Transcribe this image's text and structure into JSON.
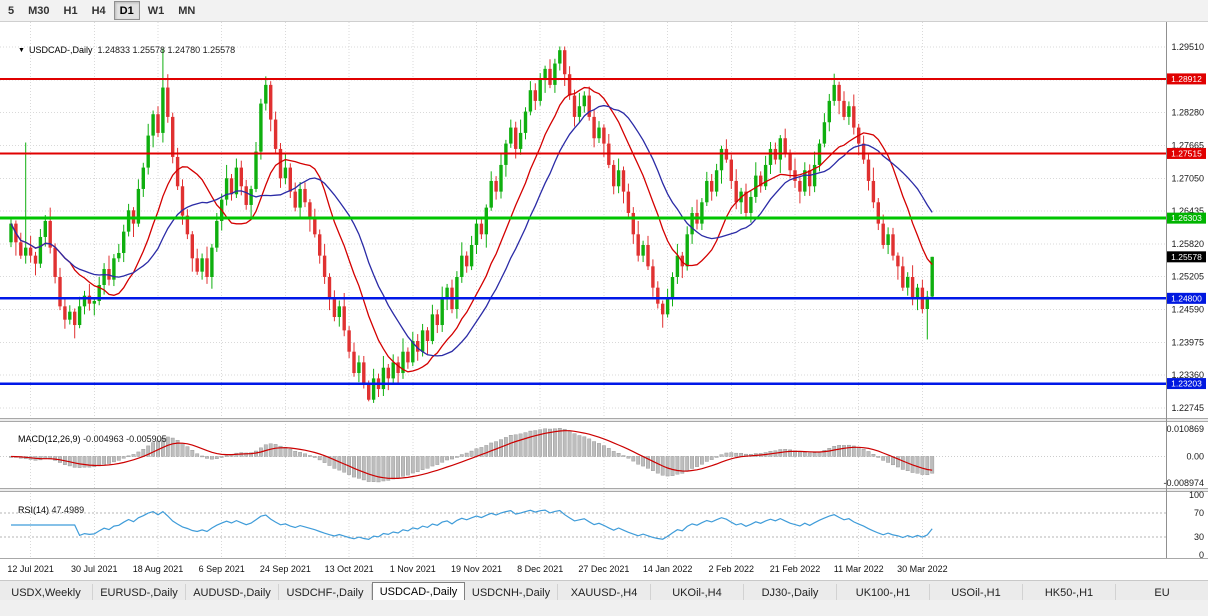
{
  "toolbar": {
    "timeframes": [
      {
        "label": "5",
        "active": false
      },
      {
        "label": "M30",
        "active": false
      },
      {
        "label": "H1",
        "active": false
      },
      {
        "label": "H4",
        "active": false
      },
      {
        "label": "D1",
        "active": true
      },
      {
        "label": "W1",
        "active": false
      },
      {
        "label": "MN",
        "active": false
      }
    ]
  },
  "header": {
    "collapse_icon": "▼",
    "symbol": "USDCAD-,Daily",
    "ohlc": "1.24833 1.25578 1.24780 1.25578"
  },
  "chart_data": {
    "type": "candlestick",
    "symbol": "USDCAD",
    "timeframe": "Daily",
    "up_color": "#0faf0f",
    "down_color": "#e03131",
    "grid_color": "#d9d9d9",
    "x_ticks": [
      "12 Jul 2021",
      "30 Jul 2021",
      "18 Aug 2021",
      "6 Sep 2021",
      "24 Sep 2021",
      "13 Oct 2021",
      "1 Nov 2021",
      "19 Nov 2021",
      "8 Dec 2021",
      "27 Dec 2021",
      "14 Jan 2022",
      "2 Feb 2022",
      "21 Feb 2022",
      "11 Mar 2022",
      "30 Mar 2022"
    ],
    "first_tick_index": 4,
    "tick_step": 13,
    "price_axis": {
      "min": 1.22745,
      "max": 1.2951,
      "grid_prices": [
        1.2951,
        1.28895,
        1.2828,
        1.27665,
        1.2705,
        1.26435,
        1.2582,
        1.25205,
        1.2459,
        1.23975,
        1.2336,
        1.22745
      ],
      "scale_labels": [
        {
          "t": "1.29510",
          "p": 1.2951
        },
        {
          "t": "1.28280",
          "p": 1.2828
        },
        {
          "t": "1.27665",
          "p": 1.27665
        },
        {
          "t": "1.27050",
          "p": 1.2705
        },
        {
          "t": "1.26435",
          "p": 1.26435
        },
        {
          "t": "1.25820",
          "p": 1.2582
        },
        {
          "t": "1.25205",
          "p": 1.25205
        },
        {
          "t": "1.24590",
          "p": 1.2459
        },
        {
          "t": "1.23975",
          "p": 1.23975
        },
        {
          "t": "1.23360",
          "p": 1.2336
        },
        {
          "t": "1.22745",
          "p": 1.22745
        }
      ],
      "badges": [
        {
          "t": "1.28912",
          "p": 1.28912,
          "bg": "#e00000"
        },
        {
          "t": "1.27515",
          "p": 1.27515,
          "bg": "#e00000"
        },
        {
          "t": "1.26303",
          "p": 1.26303,
          "bg": "#00b400"
        },
        {
          "t": "1.25578",
          "p": 1.25578,
          "bg": "#000000"
        },
        {
          "t": "1.24800",
          "p": 1.248,
          "bg": "#0018e0"
        },
        {
          "t": "1.23203",
          "p": 1.23203,
          "bg": "#0018e0"
        }
      ]
    },
    "hlines": [
      {
        "p": 1.28912,
        "color": "#e00000",
        "w": 2
      },
      {
        "p": 1.27515,
        "color": "#e00000",
        "w": 2
      },
      {
        "p": 1.26303,
        "color": "#00c400",
        "w": 3
      },
      {
        "p": 1.248,
        "color": "#0018e8",
        "w": 2.5
      },
      {
        "p": 1.23203,
        "color": "#0018e8",
        "w": 2.5
      }
    ],
    "moving_averages": [
      {
        "period": 13,
        "color": "#d40000"
      },
      {
        "period": 21,
        "color": "#2b2ba6"
      }
    ],
    "price": {
      "first_open": 1.2585,
      "wick_pattern": [
        12,
        6,
        18,
        9,
        22,
        7,
        15,
        11,
        25,
        8,
        17,
        13
      ],
      "extremes": [
        {
          "i": 3,
          "h": 1.2772
        },
        {
          "i": 31,
          "h": 1.2948
        },
        {
          "i": 52,
          "h": 1.2896
        },
        {
          "i": 73,
          "l": 1.2287
        },
        {
          "i": 112,
          "h": 1.2952
        },
        {
          "i": 168,
          "h": 1.2901
        },
        {
          "i": 187,
          "l": 1.2403
        },
        {
          "i": 188,
          "o": 1.24833,
          "h": 1.25578,
          "l": 1.2478
        }
      ],
      "closes": [
        1.262,
        1.2585,
        1.256,
        1.2575,
        1.256,
        1.2545,
        1.2595,
        1.2625,
        1.2575,
        1.252,
        1.2465,
        1.244,
        1.2455,
        1.243,
        1.2465,
        1.2485,
        1.247,
        1.2475,
        1.2505,
        1.2535,
        1.2515,
        1.2555,
        1.2565,
        1.2605,
        1.2645,
        1.262,
        1.2685,
        1.2725,
        1.2785,
        1.2825,
        1.279,
        1.2875,
        1.282,
        1.2745,
        1.269,
        1.2635,
        1.26,
        1.2555,
        1.253,
        1.2555,
        1.252,
        1.2575,
        1.2625,
        1.2665,
        1.2705,
        1.2675,
        1.2725,
        1.269,
        1.2655,
        1.2685,
        1.2755,
        1.2845,
        1.288,
        1.2815,
        1.276,
        1.2705,
        1.2725,
        1.268,
        1.265,
        1.2685,
        1.266,
        1.263,
        1.26,
        1.256,
        1.252,
        1.248,
        1.2445,
        1.2465,
        1.242,
        1.238,
        1.234,
        1.236,
        1.232,
        1.229,
        1.233,
        1.231,
        1.235,
        1.233,
        1.236,
        1.234,
        1.238,
        1.236,
        1.24,
        1.238,
        1.242,
        1.24,
        1.245,
        1.243,
        1.248,
        1.25,
        1.246,
        1.252,
        1.256,
        1.254,
        1.258,
        1.262,
        1.26,
        1.265,
        1.27,
        1.268,
        1.273,
        1.277,
        1.28,
        1.276,
        1.279,
        1.283,
        1.287,
        1.285,
        1.289,
        1.291,
        1.288,
        1.292,
        1.2945,
        1.29,
        1.286,
        1.282,
        1.284,
        1.286,
        1.282,
        1.278,
        1.28,
        1.277,
        1.273,
        1.269,
        1.272,
        1.268,
        1.264,
        1.26,
        1.256,
        1.258,
        1.254,
        1.25,
        1.247,
        1.245,
        1.248,
        1.252,
        1.256,
        1.254,
        1.26,
        1.264,
        1.262,
        1.266,
        1.27,
        1.268,
        1.272,
        1.276,
        1.274,
        1.27,
        1.266,
        1.268,
        1.264,
        1.267,
        1.271,
        1.269,
        1.273,
        1.276,
        1.274,
        1.278,
        1.275,
        1.272,
        1.27,
        1.268,
        1.272,
        1.269,
        1.273,
        1.277,
        1.281,
        1.285,
        1.288,
        1.285,
        1.282,
        1.284,
        1.28,
        1.277,
        1.274,
        1.27,
        1.266,
        1.262,
        1.258,
        1.26,
        1.256,
        1.254,
        1.25,
        1.252,
        1.248,
        1.25,
        1.246,
        1.2483,
        1.25578
      ]
    },
    "macd": {
      "label": "MACD(12,26,9)",
      "values_text": "-0.004963 -0.005905",
      "fast": 12,
      "slow": 26,
      "signal": 9,
      "hist_color": "#bdbdbd",
      "hist_stroke": "#8f8f8f",
      "signal_color": "#cc0000",
      "axis_labels": {
        "top": "0.010869",
        "zero": "0.00",
        "bottom": "-0.008974"
      }
    },
    "rsi": {
      "label": "RSI(14)",
      "value_text": "47.4989",
      "period": 14,
      "color": "#3f9cd9",
      "levels": [
        70,
        30
      ],
      "axis_labels": [
        {
          "t": "100",
          "v": 100
        },
        {
          "t": "70",
          "v": 70
        },
        {
          "t": "30",
          "v": 30
        },
        {
          "t": "0",
          "v": 0
        }
      ]
    }
  },
  "tabs": [
    {
      "label": "USDX,Weekly",
      "active": false
    },
    {
      "label": "EURUSD-,Daily",
      "active": false
    },
    {
      "label": "AUDUSD-,Daily",
      "active": false
    },
    {
      "label": "USDCHF-,Daily",
      "active": false
    },
    {
      "label": "USDCAD-,Daily",
      "active": true
    },
    {
      "label": "USDCNH-,Daily",
      "active": false
    },
    {
      "label": "XAUUSD-,H4",
      "active": false
    },
    {
      "label": "UKOil-,H4",
      "active": false
    },
    {
      "label": "DJ30-,Daily",
      "active": false
    },
    {
      "label": "UK100-,H1",
      "active": false
    },
    {
      "label": "USOil-,H1",
      "active": false
    },
    {
      "label": "HK50-,H1",
      "active": false
    },
    {
      "label": "EU",
      "active": false
    }
  ]
}
